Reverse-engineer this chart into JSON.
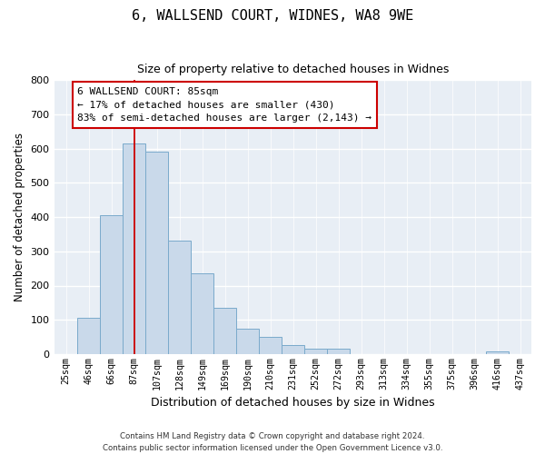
{
  "title": "6, WALLSEND COURT, WIDNES, WA8 9WE",
  "subtitle": "Size of property relative to detached houses in Widnes",
  "xlabel": "Distribution of detached houses by size in Widnes",
  "ylabel": "Number of detached properties",
  "bar_labels": [
    "25sqm",
    "46sqm",
    "66sqm",
    "87sqm",
    "107sqm",
    "128sqm",
    "149sqm",
    "169sqm",
    "190sqm",
    "210sqm",
    "231sqm",
    "252sqm",
    "272sqm",
    "293sqm",
    "313sqm",
    "334sqm",
    "355sqm",
    "375sqm",
    "396sqm",
    "416sqm",
    "437sqm"
  ],
  "bar_values": [
    0,
    105,
    405,
    615,
    590,
    330,
    235,
    135,
    75,
    50,
    25,
    15,
    15,
    0,
    0,
    0,
    0,
    0,
    0,
    7,
    0
  ],
  "bar_color": "#c9d9ea",
  "bar_edge_color": "#7aaacb",
  "vline_x": 3,
  "vline_color": "#cc0000",
  "ylim": [
    0,
    800
  ],
  "yticks": [
    0,
    100,
    200,
    300,
    400,
    500,
    600,
    700,
    800
  ],
  "annotation_title": "6 WALLSEND COURT: 85sqm",
  "annotation_line1": "← 17% of detached houses are smaller (430)",
  "annotation_line2": "83% of semi-detached houses are larger (2,143) →",
  "annotation_box_color": "#ffffff",
  "annotation_box_edge": "#cc0000",
  "footer1": "Contains HM Land Registry data © Crown copyright and database right 2024.",
  "footer2": "Contains public sector information licensed under the Open Government Licence v3.0.",
  "background_color": "#ffffff",
  "plot_background": "#e8eef5"
}
